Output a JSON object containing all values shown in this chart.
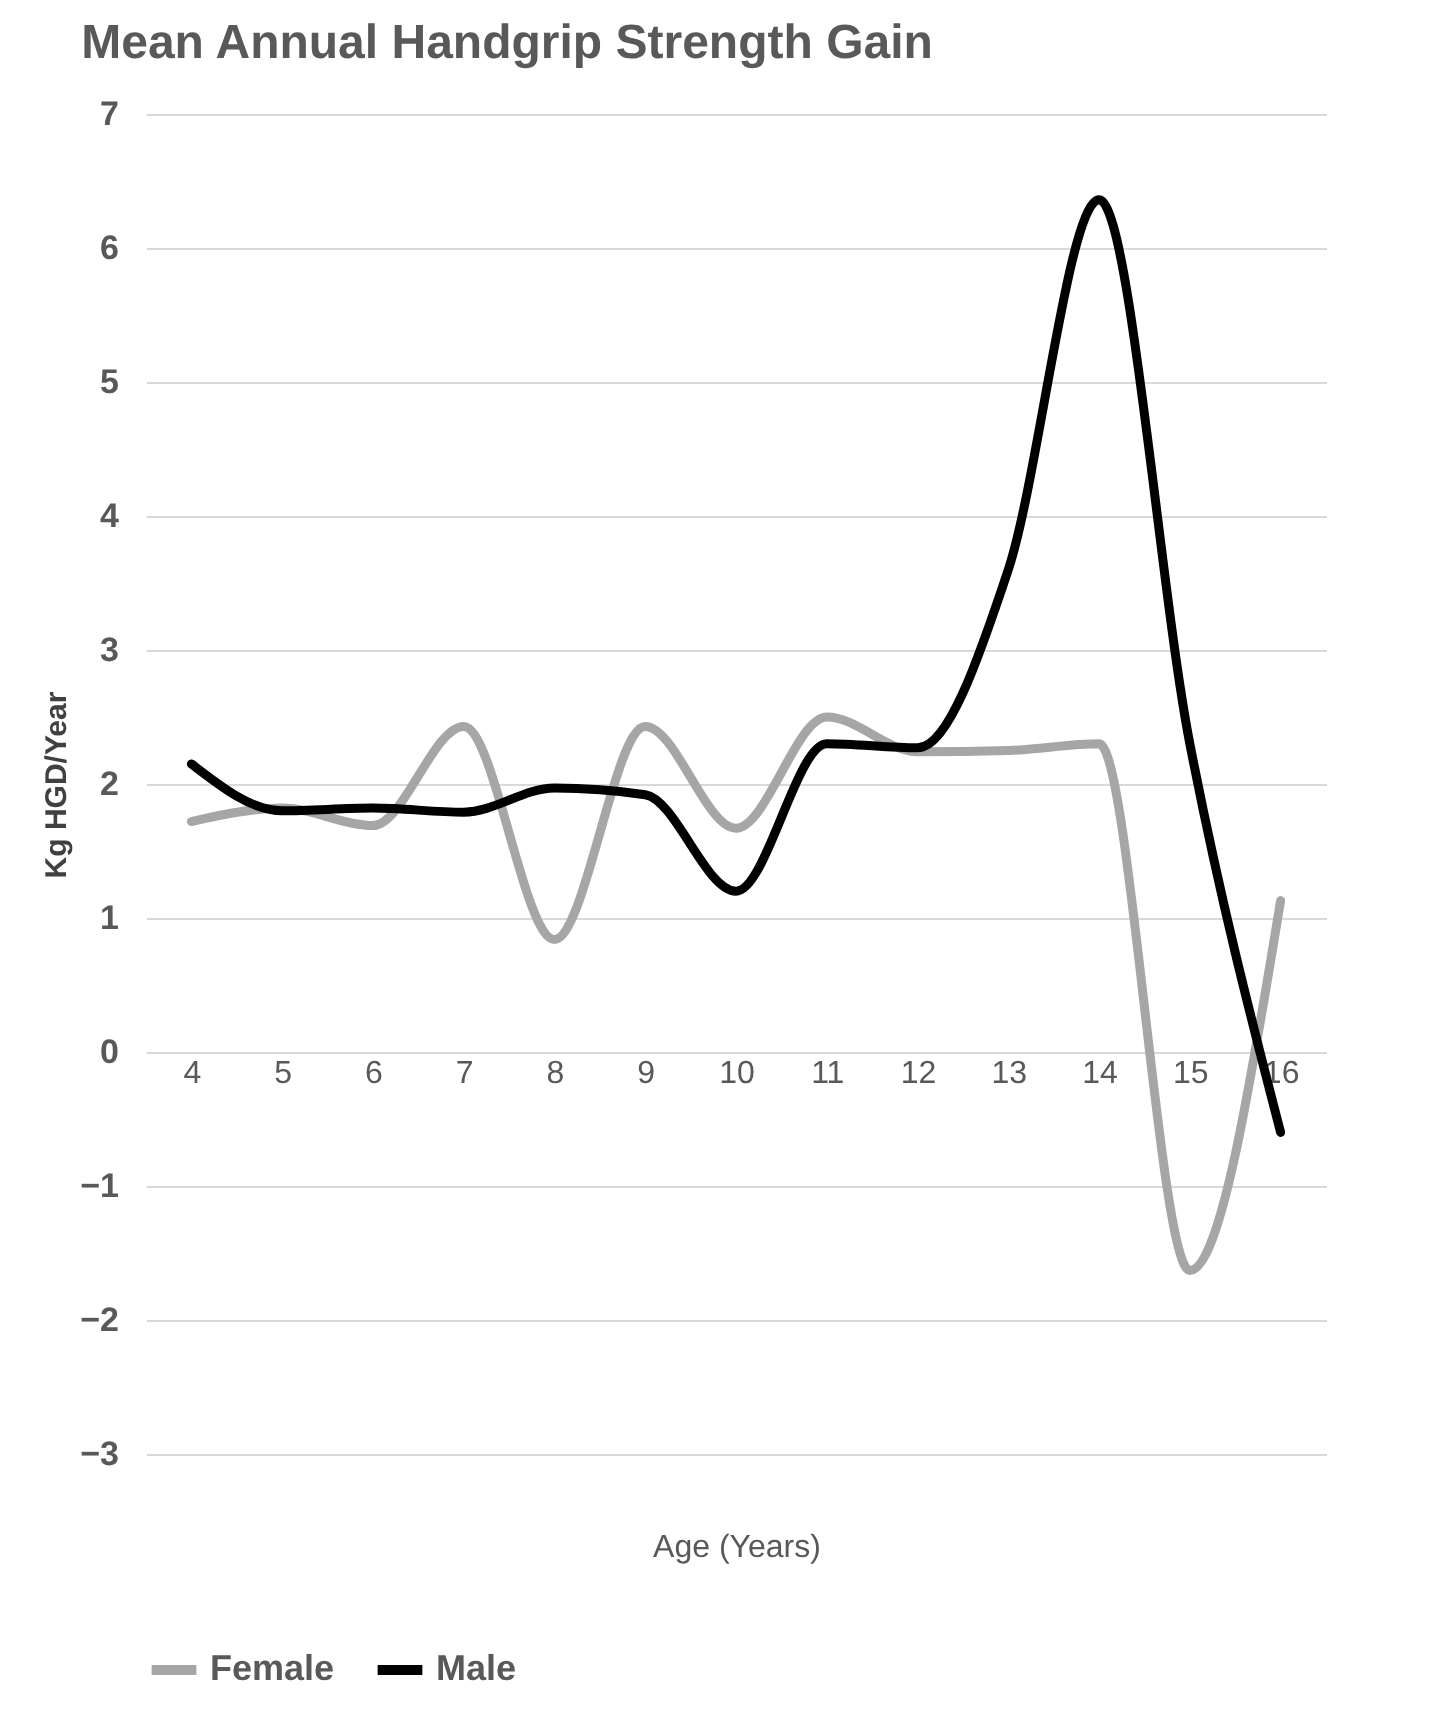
{
  "chart_data": {
    "type": "line",
    "title": "Mean Annual Handgrip Strength Gain",
    "xlabel": "Age (Years)",
    "ylabel": "Kg HGD/Year",
    "categories": [
      "4",
      "5",
      "6",
      "7",
      "8",
      "9",
      "10",
      "11",
      "12",
      "13",
      "14",
      "15",
      "16"
    ],
    "series": [
      {
        "name": "Female",
        "color": "#a6a6a6",
        "values": [
          1.72,
          1.82,
          1.69,
          2.43,
          0.84,
          2.43,
          1.67,
          2.5,
          2.24,
          2.25,
          2.3,
          -1.63,
          1.13
        ]
      },
      {
        "name": "Male",
        "color": "#000000",
        "values": [
          2.15,
          1.8,
          1.82,
          1.79,
          1.97,
          1.92,
          1.2,
          2.3,
          2.27,
          3.6,
          6.36,
          2.3,
          -0.6
        ]
      }
    ],
    "ylim": [
      -3,
      7
    ],
    "yticks": [
      -3,
      -2,
      -1,
      0,
      1,
      2,
      3,
      4,
      5,
      6,
      7
    ],
    "grid": "y",
    "legend": "bottom"
  }
}
